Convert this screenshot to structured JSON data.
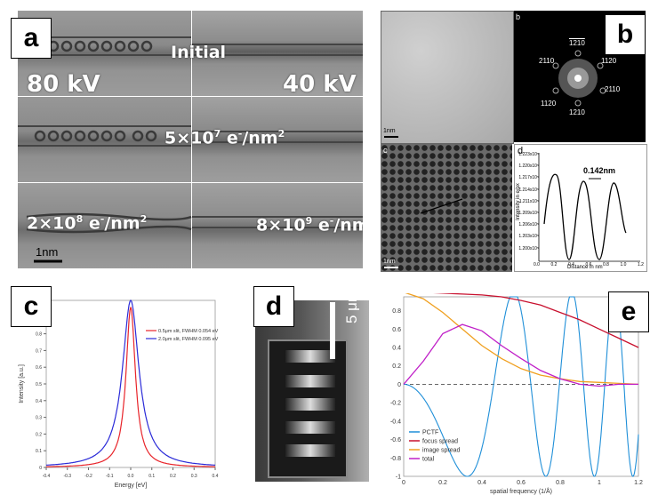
{
  "panel_a": {
    "label": "a",
    "initial": "Initial",
    "kv80": "80 kV",
    "kv40": "40 kV",
    "dose1_base": "5×10",
    "dose1_exp": "7",
    "dose1_unit": " e",
    "dose1_sup": "-",
    "dose1_tail": "/nm",
    "dose1_sq": "2",
    "dose2_base": "2×10",
    "dose2_exp": "8",
    "dose2_unit": " e",
    "dose2_sup": "-",
    "dose2_tail": "/nm",
    "dose2_sq": "2",
    "dose3_base": "8×10",
    "dose3_exp": "9",
    "dose3_unit": " e",
    "dose3_sup": "-",
    "dose3_tail": "/nm",
    "scalebar": "1nm"
  },
  "panel_b": {
    "label": "b",
    "sub_b": "b",
    "sub_c": "c",
    "sub_d": "d",
    "scale1": "1nm",
    "scale2": "1nm",
    "fft_labels": [
      "1210",
      "2110",
      "1120",
      "2110",
      "1120",
      "1210"
    ],
    "profile_annotation": "0.142nm",
    "profile_xlabel": "Distance in nm",
    "profile_ylabel": "Intensity in e/px",
    "profile_xticks": [
      "0.0",
      "0.2",
      "0.4",
      "0.6",
      "0.8",
      "1.0",
      "1.2"
    ],
    "profile_yticks": [
      "1.223x10⁵",
      "1.220x10⁵",
      "1.217x10⁵",
      "1.214x10⁵",
      "1.211x10⁵",
      "1.209x10⁵",
      "1.206x10⁵",
      "1.203x10⁵",
      "1.200x10⁵"
    ]
  },
  "panel_c": {
    "label": "c",
    "colors": {
      "red": "#e8242a",
      "blue": "#2b2bd8"
    }
  },
  "panel_d": {
    "label": "d",
    "scalebar": "5 μm"
  },
  "panel_e": {
    "label": "e",
    "colors": {
      "pctf": "#1f8fd8",
      "focus": "#c8102e",
      "image": "#f0a020",
      "total": "#c020c8"
    }
  },
  "chart_data": [
    {
      "type": "line",
      "title": "",
      "xlabel": "Energy [eV]",
      "ylabel": "Intensity [a.u.]",
      "xlim": [
        -0.4,
        0.4
      ],
      "ylim": [
        0,
        1
      ],
      "x_ticks": [
        "-0.4",
        "-0.3",
        "-0.2",
        "-0.1",
        "0.0",
        "0.1",
        "0.2",
        "0.3",
        "0.4"
      ],
      "y_ticks": [
        "0",
        "0.1",
        "0.2",
        "0.3",
        "0.4",
        "0.5",
        "0.6",
        "0.7",
        "0.8",
        "0.9",
        "1"
      ],
      "legend": "top-right",
      "series": [
        {
          "name": "0.5μm slit, FWHM 0.054 eV",
          "color": "#e8242a",
          "fwhm": 0.054,
          "peak": 0.96,
          "center": 0.0
        },
        {
          "name": "2.0μm slit, FWHM 0.095 eV",
          "color": "#2b2bd8",
          "fwhm": 0.095,
          "peak": 1.0,
          "center": 0.0
        }
      ]
    },
    {
      "type": "line",
      "title": "",
      "xlabel": "spatial frequency (1/Å)",
      "ylabel": "",
      "xlim": [
        0,
        1.2
      ],
      "ylim": [
        -1,
        0.95
      ],
      "x_ticks": [
        "0",
        "0.2",
        "0.4",
        "0.6",
        "0.8",
        "1",
        "1.2"
      ],
      "y_ticks": [
        "-1",
        "-0.8",
        "-0.6",
        "-0.4",
        "-0.2",
        "0",
        "0.2",
        "0.4",
        "0.6",
        "0.8"
      ],
      "legend": "bottom-left",
      "series": [
        {
          "name": "PCTF",
          "color": "#1f8fd8"
        },
        {
          "name": "focus spread",
          "color": "#c8102e"
        },
        {
          "name": "image spread",
          "color": "#f0a020"
        },
        {
          "name": "total",
          "color": "#c020c8"
        }
      ],
      "samples_x": [
        0,
        0.1,
        0.2,
        0.3,
        0.4,
        0.5,
        0.6,
        0.7,
        0.8,
        0.9,
        1.0,
        1.1,
        1.2
      ],
      "focus_spread": [
        1.0,
        1.0,
        0.99,
        0.98,
        0.97,
        0.95,
        0.91,
        0.86,
        0.78,
        0.7,
        0.6,
        0.5,
        0.4
      ],
      "image_spread": [
        1.0,
        0.93,
        0.78,
        0.6,
        0.42,
        0.28,
        0.17,
        0.1,
        0.06,
        0.03,
        0.02,
        0.01,
        0.0
      ],
      "total": [
        0.0,
        0.25,
        0.55,
        0.65,
        0.58,
        0.42,
        0.28,
        0.15,
        0.06,
        0.0,
        -0.02,
        0.0,
        0.0
      ]
    }
  ]
}
